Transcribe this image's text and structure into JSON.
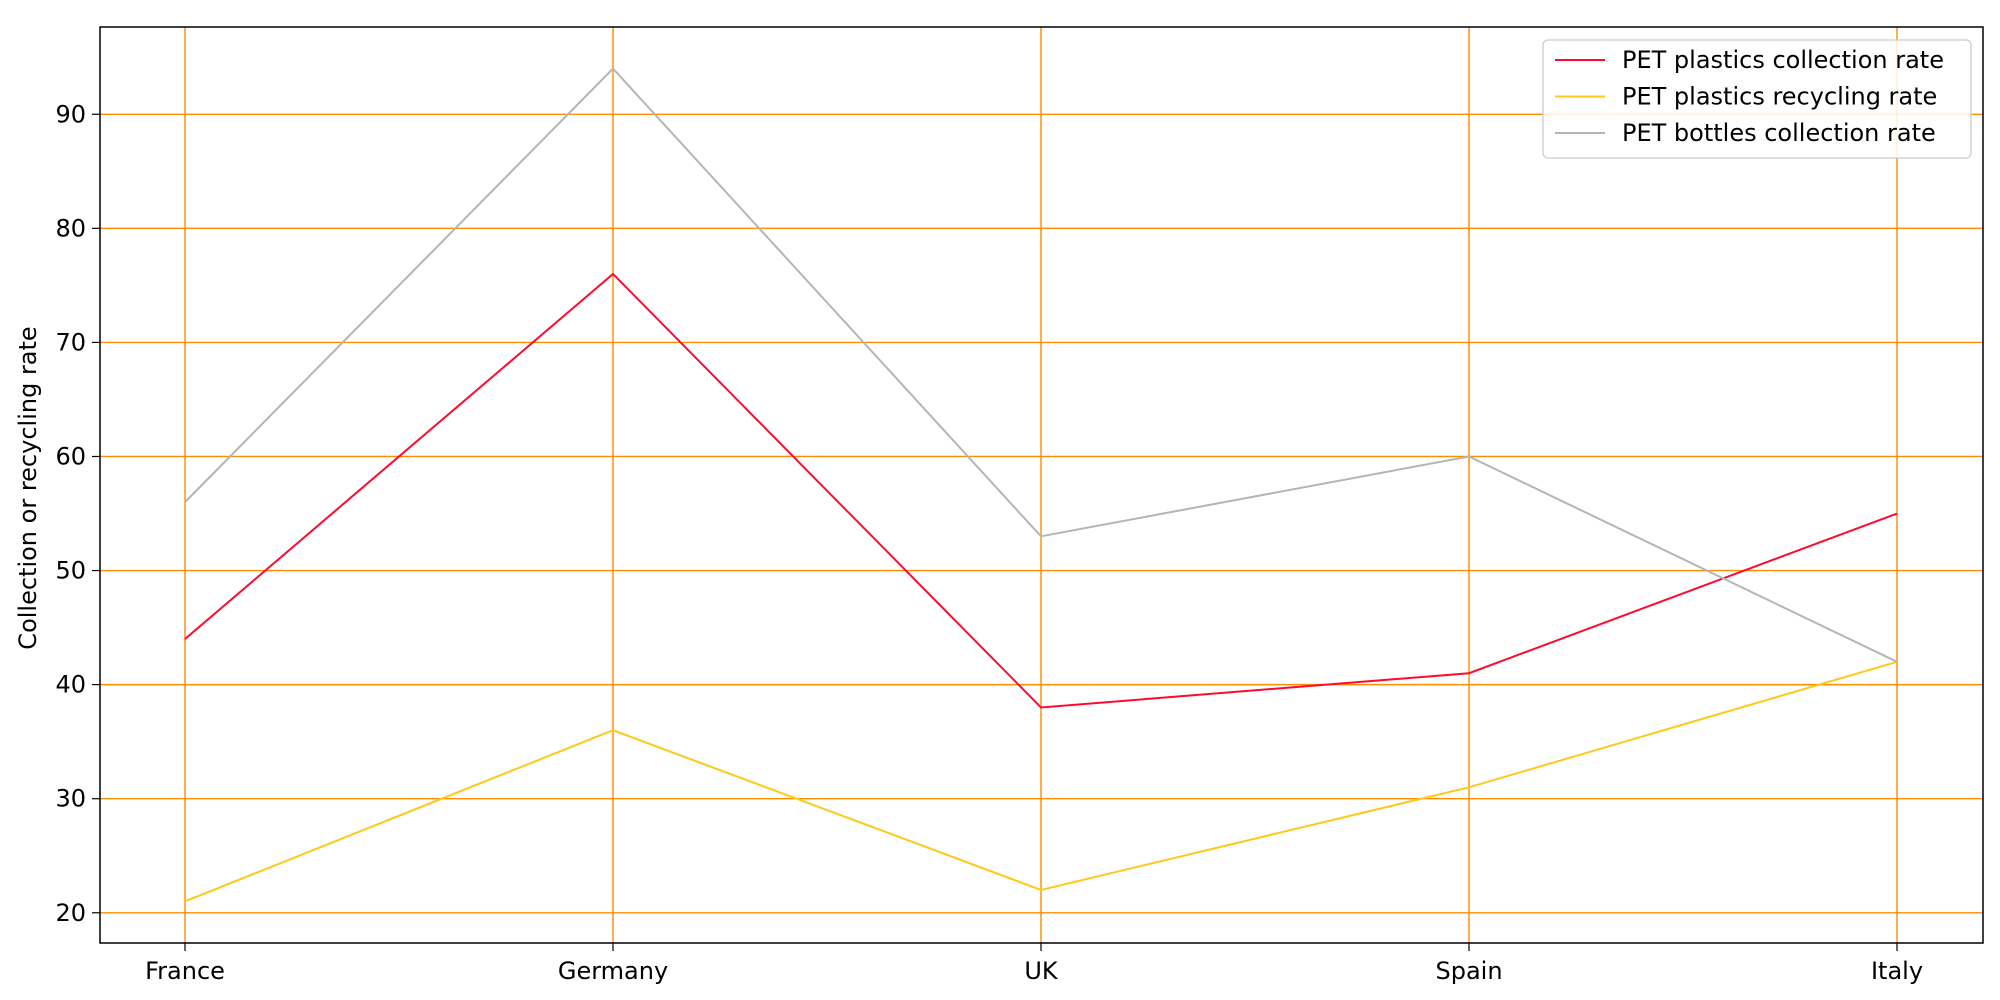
{
  "chart_data": {
    "type": "line",
    "categories": [
      "France",
      "Germany",
      "UK",
      "Spain",
      "Italy"
    ],
    "series": [
      {
        "name": "PET plastics collection rate",
        "values": [
          44,
          76,
          38,
          41,
          55
        ],
        "color": "#ff0a2e"
      },
      {
        "name": "PET plastics recycling rate",
        "values": [
          21,
          36,
          22,
          31,
          42
        ],
        "color": "#ffc81a"
      },
      {
        "name": "PET bottles collection rate",
        "values": [
          56,
          94,
          53,
          60,
          42
        ],
        "color": "#b5b5b5"
      }
    ],
    "xlabel": "",
    "ylabel": "Collection or recycling rate",
    "ylim": [
      17.35,
      97.65
    ],
    "yticks": [
      20,
      30,
      40,
      50,
      60,
      70,
      80,
      90
    ],
    "grid": true,
    "grid_color": "#ff8c00",
    "legend_position": "top-right"
  }
}
